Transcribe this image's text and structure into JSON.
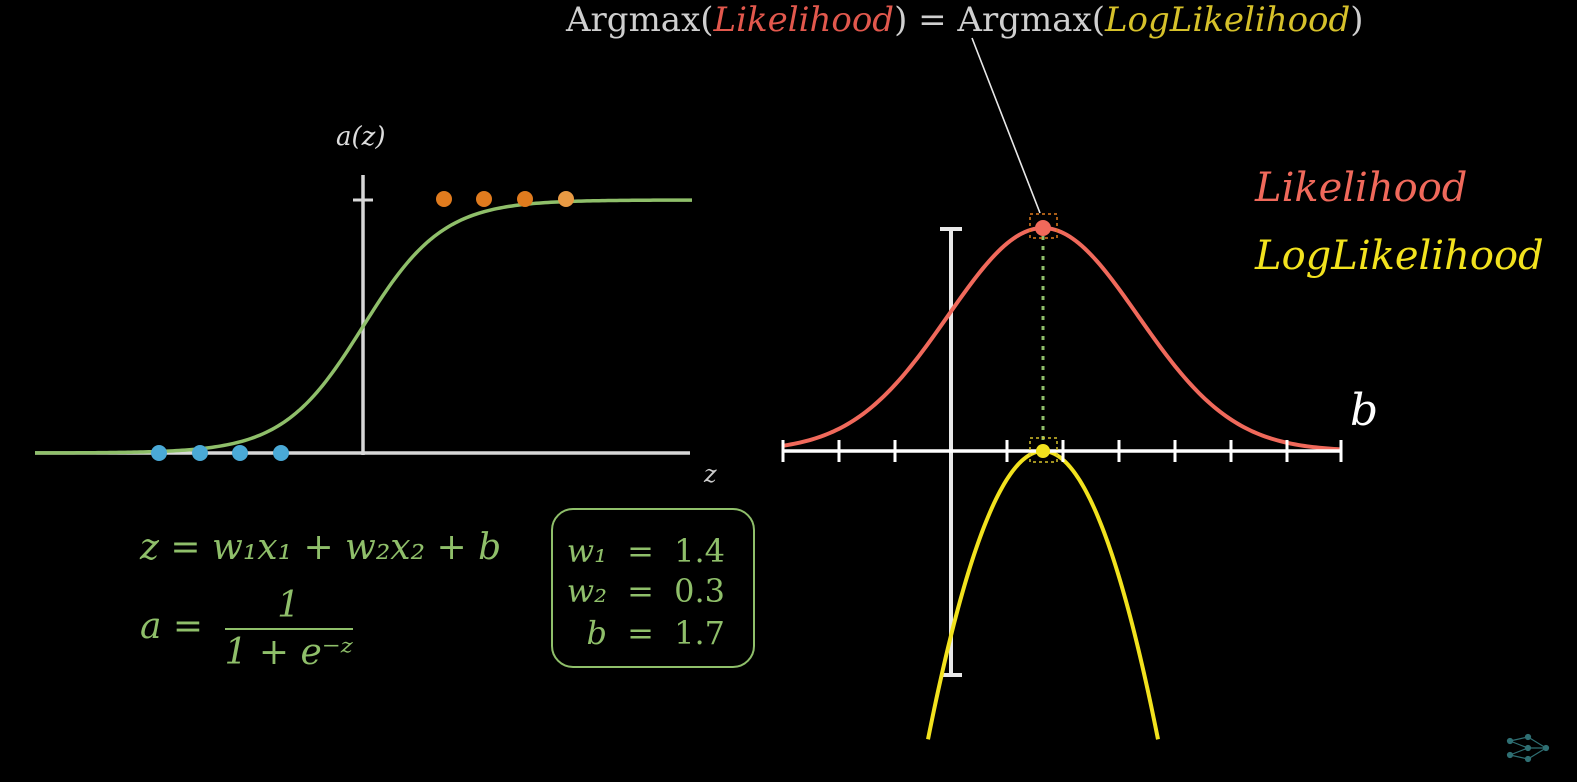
{
  "title": {
    "prefix": "Argmax(",
    "likelihood": "Likelihood",
    "middle": ") = Argmax(",
    "loglikelihood": "LogLikelihood",
    "suffix": ")"
  },
  "legend": {
    "likelihood": "Likelihood",
    "loglikelihood": "LogLikelihood"
  },
  "sigmoid_plot": {
    "y_axis_label": "a(z)",
    "x_axis_label": "z",
    "curve_color": "#8fbf6a",
    "class0_color": "#4aa9d6",
    "class1_color": "#e07b1e"
  },
  "likelihood_plot": {
    "x_axis_label": "b",
    "likelihood_color": "#f0695b",
    "loglikelihood_color": "#f2e21e",
    "argmax_marker_color": "#8fbf6a"
  },
  "equations": {
    "eq1": "z = w₁x₁ + w₂x₂ + b",
    "eq2_lhs": "a =",
    "eq2_num": "1",
    "eq2_den": "1 + e⁻ᶻ"
  },
  "params": [
    {
      "name": "w₁",
      "eq": "=",
      "value": "1.4"
    },
    {
      "name": "w₂",
      "eq": "=",
      "value": "0.3"
    },
    {
      "name": "b",
      "eq": "=",
      "value": "1.7"
    }
  ],
  "logo": "network-logo-icon"
}
